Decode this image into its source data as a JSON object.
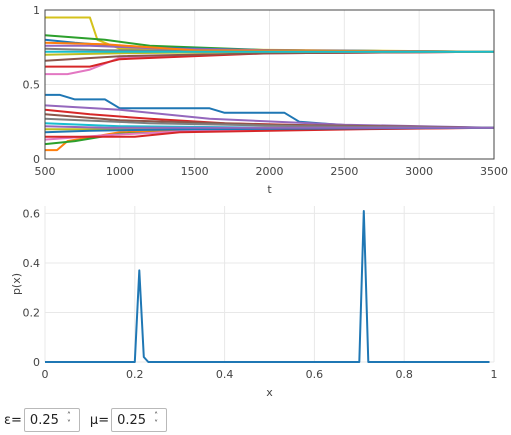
{
  "chart_data": [
    {
      "type": "line",
      "xlabel": "t",
      "ylabel": "",
      "xlim": [
        500,
        3500
      ],
      "ylim": [
        0,
        1
      ],
      "x_ticks": [
        "500",
        "1000",
        "1500",
        "2000",
        "2500",
        "3000",
        "3500"
      ],
      "y_ticks": [
        "0",
        "0.5",
        "1"
      ],
      "grid": true,
      "series": [
        {
          "color": "#d4c21c",
          "x": [
            500,
            800,
            850,
            1000,
            3500
          ],
          "y": [
            0.95,
            0.95,
            0.8,
            0.74,
            0.72
          ]
        },
        {
          "color": "#2ca02c",
          "x": [
            500,
            900,
            1200,
            2000,
            3500
          ],
          "y": [
            0.83,
            0.8,
            0.76,
            0.73,
            0.72
          ]
        },
        {
          "color": "#1f77b4",
          "x": [
            500,
            700,
            1100,
            2000,
            3500
          ],
          "y": [
            0.8,
            0.78,
            0.75,
            0.73,
            0.72
          ]
        },
        {
          "color": "#e377c2",
          "x": [
            500,
            650,
            800,
            1000,
            2000,
            3500
          ],
          "y": [
            0.57,
            0.57,
            0.6,
            0.68,
            0.71,
            0.72
          ]
        },
        {
          "color": "#d62728",
          "x": [
            500,
            800,
            1000,
            2000,
            3500
          ],
          "y": [
            0.62,
            0.62,
            0.67,
            0.71,
            0.72
          ]
        },
        {
          "color": "#9467bd",
          "x": [
            500,
            800,
            1300,
            2000,
            3500
          ],
          "y": [
            0.76,
            0.76,
            0.74,
            0.73,
            0.72
          ]
        },
        {
          "color": "#8c564b",
          "x": [
            500,
            1000,
            2000,
            3500
          ],
          "y": [
            0.66,
            0.69,
            0.71,
            0.72
          ]
        },
        {
          "color": "#7f7f7f",
          "x": [
            500,
            900,
            2000,
            3500
          ],
          "y": [
            0.74,
            0.73,
            0.72,
            0.72
          ]
        },
        {
          "color": "#bcbd22",
          "x": [
            500,
            1000,
            2000,
            3500
          ],
          "y": [
            0.7,
            0.71,
            0.72,
            0.72
          ]
        },
        {
          "color": "#ff7f0e",
          "x": [
            500,
            900,
            1500,
            3500
          ],
          "y": [
            0.78,
            0.77,
            0.73,
            0.72
          ]
        },
        {
          "color": "#17becf",
          "x": [
            500,
            1000,
            2000,
            3500
          ],
          "y": [
            0.72,
            0.72,
            0.72,
            0.72
          ]
        },
        {
          "color": "#1f77b4",
          "x": [
            500,
            600,
            700,
            900,
            1000,
            1600,
            1700,
            2100,
            2200,
            2600,
            3500
          ],
          "y": [
            0.43,
            0.43,
            0.4,
            0.4,
            0.34,
            0.34,
            0.31,
            0.31,
            0.25,
            0.22,
            0.21
          ]
        },
        {
          "color": "#9467bd",
          "x": [
            500,
            1000,
            1600,
            2500,
            3500
          ],
          "y": [
            0.36,
            0.33,
            0.27,
            0.23,
            0.21
          ]
        },
        {
          "color": "#d62728",
          "x": [
            500,
            800,
            1200,
            1700,
            2500,
            3500
          ],
          "y": [
            0.33,
            0.3,
            0.27,
            0.24,
            0.22,
            0.21
          ]
        },
        {
          "color": "#8c564b",
          "x": [
            500,
            1000,
            2000,
            3500
          ],
          "y": [
            0.3,
            0.26,
            0.23,
            0.21
          ]
        },
        {
          "color": "#ff7f0e",
          "x": [
            500,
            580,
            650,
            1000,
            2000,
            3500
          ],
          "y": [
            0.06,
            0.06,
            0.12,
            0.18,
            0.2,
            0.21
          ]
        },
        {
          "color": "#2ca02c",
          "x": [
            500,
            700,
            1000,
            2000,
            3500
          ],
          "y": [
            0.1,
            0.12,
            0.17,
            0.2,
            0.21
          ]
        },
        {
          "color": "#e377c2",
          "x": [
            500,
            900,
            1500,
            3500
          ],
          "y": [
            0.13,
            0.16,
            0.19,
            0.21
          ]
        },
        {
          "color": "#d62728",
          "x": [
            500,
            1100,
            1400,
            2000,
            2600,
            3500
          ],
          "y": [
            0.15,
            0.15,
            0.18,
            0.19,
            0.2,
            0.21
          ]
        },
        {
          "color": "#17becf",
          "x": [
            500,
            1000,
            2000,
            3500
          ],
          "y": [
            0.24,
            0.22,
            0.21,
            0.21
          ]
        },
        {
          "color": "#bcbd22",
          "x": [
            500,
            1000,
            2000,
            3500
          ],
          "y": [
            0.2,
            0.2,
            0.21,
            0.21
          ]
        },
        {
          "color": "#7f7f7f",
          "x": [
            500,
            1200,
            2200,
            3500
          ],
          "y": [
            0.27,
            0.24,
            0.22,
            0.21
          ]
        },
        {
          "color": "#1f77b4",
          "x": [
            500,
            800,
            1500,
            3500
          ],
          "y": [
            0.18,
            0.19,
            0.2,
            0.21
          ]
        },
        {
          "color": "#9467bd",
          "x": [
            500,
            900,
            1800,
            3500
          ],
          "y": [
            0.22,
            0.21,
            0.21,
            0.21
          ]
        }
      ]
    },
    {
      "type": "line",
      "xlabel": "x",
      "ylabel": "p(x)",
      "xlim": [
        0,
        1
      ],
      "ylim": [
        0,
        0.63
      ],
      "x_ticks": [
        "0",
        "0.2",
        "0.4",
        "0.6",
        "0.8",
        "1"
      ],
      "y_ticks": [
        "0",
        "0.2",
        "0.4",
        "0.6"
      ],
      "grid": true,
      "series": [
        {
          "color": "#1f77b4",
          "x": [
            0,
            0.2,
            0.21,
            0.22,
            0.23,
            0.7,
            0.71,
            0.72,
            0.99
          ],
          "y": [
            0,
            0,
            0.37,
            0.02,
            0,
            0,
            0.61,
            0,
            0
          ]
        }
      ]
    }
  ],
  "controls": {
    "epsilon_label": "ε=",
    "epsilon_value": "0.25",
    "mu_label": "μ=",
    "mu_value": "0.25",
    "spinner_up": "˄",
    "spinner_down": "˅"
  }
}
